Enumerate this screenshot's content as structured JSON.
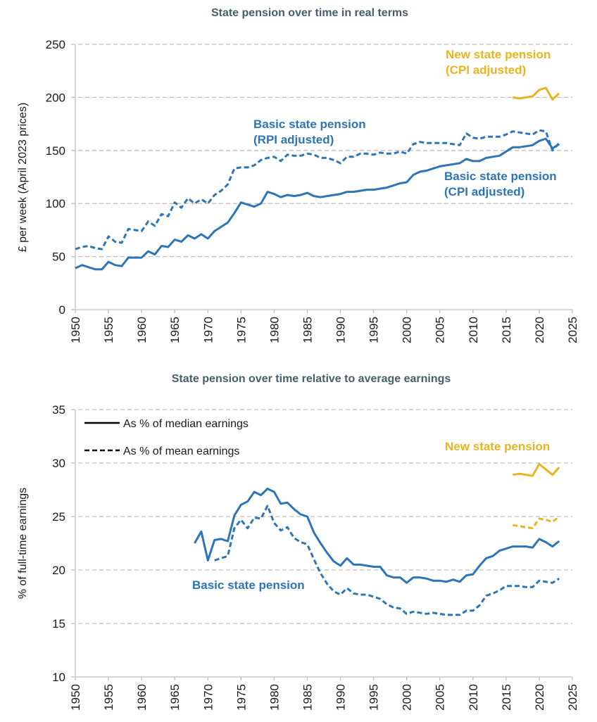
{
  "colors": {
    "basic": "#2e75b6",
    "new": "#e8b520",
    "grid": "#bfbfbf",
    "axis": "#bfbfbf",
    "title": "#44606a"
  },
  "chart_data": [
    {
      "type": "line",
      "title": "State pension over time in real terms",
      "xlabel": "",
      "ylabel": "£ per week (April 2023 prices)",
      "xlim": [
        1950,
        2025
      ],
      "ylim": [
        0,
        250
      ],
      "xticks": [
        "1950",
        "1955",
        "1960",
        "1965",
        "1970",
        "1975",
        "1980",
        "1985",
        "1990",
        "1995",
        "2000",
        "2005",
        "2010",
        "2015",
        "2020",
        "2025"
      ],
      "yticks": [
        "0",
        "50",
        "100",
        "150",
        "200",
        "250"
      ],
      "grid": true,
      "series": [
        {
          "name": "Basic state pension (RPI adjusted)",
          "style": "dashed",
          "color_key": "basic",
          "x": [
            1950,
            1951,
            1952,
            1953,
            1954,
            1955,
            1956,
            1957,
            1958,
            1959,
            1960,
            1961,
            1962,
            1963,
            1964,
            1965,
            1966,
            1967,
            1968,
            1969,
            1970,
            1971,
            1972,
            1973,
            1974,
            1975,
            1976,
            1977,
            1978,
            1979,
            1980,
            1981,
            1982,
            1983,
            1984,
            1985,
            1986,
            1987,
            1988,
            1989,
            1990,
            1991,
            1992,
            1993,
            1994,
            1995,
            1996,
            1997,
            1998,
            1999,
            2000,
            2001,
            2002,
            2003,
            2004,
            2005,
            2006,
            2007,
            2008,
            2009,
            2010,
            2011,
            2012,
            2013,
            2014,
            2015,
            2016,
            2017,
            2018,
            2019,
            2020,
            2021,
            2022,
            2023
          ],
          "values": [
            57,
            59,
            60,
            58,
            57,
            69,
            64,
            63,
            76,
            75,
            74,
            83,
            79,
            90,
            88,
            101,
            96,
            105,
            100,
            104,
            100,
            108,
            112,
            118,
            133,
            134,
            134,
            136,
            141,
            143,
            144,
            140,
            146,
            145,
            145,
            147,
            146,
            143,
            143,
            141,
            138,
            144,
            144,
            147,
            147,
            146,
            148,
            147,
            147,
            149,
            147,
            156,
            158,
            157,
            157,
            157,
            157,
            156,
            155,
            166,
            162,
            161,
            163,
            163,
            163,
            165,
            168,
            167,
            166,
            165,
            169,
            168,
            150,
            157
          ]
        },
        {
          "name": "Basic state pension (CPI adjusted)",
          "style": "solid",
          "color_key": "basic",
          "x": [
            1950,
            1951,
            1952,
            1953,
            1954,
            1955,
            1956,
            1957,
            1958,
            1959,
            1960,
            1961,
            1962,
            1963,
            1964,
            1965,
            1966,
            1967,
            1968,
            1969,
            1970,
            1971,
            1972,
            1973,
            1974,
            1975,
            1976,
            1977,
            1978,
            1979,
            1980,
            1981,
            1982,
            1983,
            1984,
            1985,
            1986,
            1987,
            1988,
            1989,
            1990,
            1991,
            1992,
            1993,
            1994,
            1995,
            1996,
            1997,
            1998,
            1999,
            2000,
            2001,
            2002,
            2003,
            2004,
            2005,
            2006,
            2007,
            2008,
            2009,
            2010,
            2011,
            2012,
            2013,
            2014,
            2015,
            2016,
            2017,
            2018,
            2019,
            2020,
            2021,
            2022,
            2023
          ],
          "values": [
            39,
            42,
            40,
            38,
            38,
            45,
            42,
            41,
            49,
            49,
            49,
            55,
            52,
            60,
            59,
            66,
            64,
            70,
            67,
            71,
            67,
            74,
            78,
            82,
            91,
            101,
            99,
            97,
            100,
            111,
            109,
            106,
            108,
            107,
            108,
            110,
            107,
            106,
            107,
            108,
            109,
            111,
            111,
            112,
            113,
            113,
            114,
            115,
            117,
            119,
            120,
            127,
            130,
            131,
            133,
            135,
            136,
            137,
            138,
            142,
            140,
            140,
            143,
            144,
            145,
            149,
            153,
            153,
            154,
            155,
            159,
            161,
            152,
            156
          ]
        },
        {
          "name": "New state pension (CPI adjusted)",
          "style": "solid",
          "color_key": "new",
          "x": [
            2016,
            2017,
            2018,
            2019,
            2020,
            2021,
            2022,
            2023
          ],
          "values": [
            200,
            199,
            200,
            201,
            207,
            209,
            198,
            204
          ]
        }
      ],
      "annotations": [
        {
          "text_lines": [
            "Basic state pension",
            "(RPI adjusted)"
          ],
          "color_key": "basic"
        },
        {
          "text_lines": [
            "Basic state pension",
            "(CPI adjusted)"
          ],
          "color_key": "basic"
        },
        {
          "text_lines": [
            "New state pension",
            "(CPI adjusted)"
          ],
          "color_key": "new"
        }
      ]
    },
    {
      "type": "line",
      "title": "State pension over time relative to average earnings",
      "xlabel": "",
      "ylabel": "% of full-time earnings",
      "xlim": [
        1950,
        2025
      ],
      "ylim": [
        10,
        35
      ],
      "xticks": [
        "1950",
        "1955",
        "1960",
        "1965",
        "1970",
        "1975",
        "1980",
        "1985",
        "1990",
        "1995",
        "2000",
        "2005",
        "2010",
        "2015",
        "2020",
        "2025"
      ],
      "yticks": [
        "10",
        "15",
        "20",
        "25",
        "30",
        "35"
      ],
      "grid": true,
      "legend_position": "top-left",
      "legend": [
        {
          "label": "As % of median earnings",
          "style": "solid"
        },
        {
          "label": "As % of mean earnings",
          "style": "dashed"
        }
      ],
      "series": [
        {
          "name": "Basic state pension – as % of median earnings",
          "style": "solid",
          "color_key": "basic",
          "x": [
            1968,
            1969,
            1970,
            1971,
            1972,
            1973,
            1974,
            1975,
            1976,
            1977,
            1978,
            1979,
            1980,
            1981,
            1982,
            1983,
            1984,
            1985,
            1986,
            1987,
            1988,
            1989,
            1990,
            1991,
            1992,
            1993,
            1994,
            1995,
            1996,
            1997,
            1998,
            1999,
            2000,
            2001,
            2002,
            2003,
            2004,
            2005,
            2006,
            2007,
            2008,
            2009,
            2010,
            2011,
            2012,
            2013,
            2014,
            2015,
            2016,
            2017,
            2018,
            2019,
            2020,
            2021,
            2022,
            2023
          ],
          "values": [
            22.5,
            23.6,
            20.9,
            22.8,
            22.9,
            22.7,
            25.1,
            26.1,
            26.4,
            27.3,
            27.0,
            27.6,
            27.3,
            26.2,
            26.3,
            25.7,
            25.2,
            25.0,
            23.5,
            22.5,
            21.6,
            20.8,
            20.4,
            21.1,
            20.5,
            20.5,
            20.4,
            20.3,
            20.3,
            19.5,
            19.3,
            19.3,
            18.8,
            19.3,
            19.3,
            19.2,
            19.0,
            19.0,
            18.9,
            19.1,
            18.9,
            19.5,
            19.6,
            20.4,
            21.1,
            21.3,
            21.8,
            22.0,
            22.2,
            22.2,
            22.2,
            22.1,
            22.9,
            22.6,
            22.2,
            22.7
          ]
        },
        {
          "name": "Basic state pension – as % of mean earnings",
          "style": "dashed",
          "color_key": "basic",
          "x": [
            1971,
            1972,
            1973,
            1974,
            1975,
            1976,
            1977,
            1978,
            1979,
            1980,
            1981,
            1982,
            1983,
            1984,
            1985,
            1986,
            1987,
            1988,
            1989,
            1990,
            1991,
            1992,
            1993,
            1994,
            1995,
            1996,
            1997,
            1998,
            1999,
            2000,
            2001,
            2002,
            2003,
            2004,
            2005,
            2006,
            2007,
            2008,
            2009,
            2010,
            2011,
            2012,
            2013,
            2014,
            2015,
            2016,
            2017,
            2018,
            2019,
            2020,
            2021,
            2022,
            2023
          ],
          "values": [
            20.9,
            21.1,
            21.3,
            23.9,
            24.7,
            23.9,
            24.9,
            24.8,
            26.0,
            24.4,
            23.7,
            24.0,
            23.0,
            22.6,
            22.4,
            21.0,
            19.7,
            18.7,
            18.0,
            17.7,
            18.3,
            17.8,
            17.7,
            17.7,
            17.5,
            17.3,
            16.8,
            16.5,
            16.4,
            15.9,
            16.1,
            16.0,
            15.9,
            16.0,
            15.9,
            15.8,
            15.8,
            15.8,
            16.2,
            16.2,
            16.7,
            17.6,
            17.8,
            18.1,
            18.5,
            18.5,
            18.5,
            18.4,
            18.4,
            19.0,
            18.9,
            18.8,
            19.2
          ]
        },
        {
          "name": "New state pension – as % of median earnings",
          "style": "solid",
          "color_key": "new",
          "x": [
            2016,
            2017,
            2018,
            2019,
            2020,
            2021,
            2022,
            2023
          ],
          "values": [
            28.9,
            29.0,
            28.9,
            28.8,
            29.9,
            29.4,
            28.9,
            29.6
          ]
        },
        {
          "name": "New state pension – as % of mean earnings",
          "style": "dashed",
          "color_key": "new",
          "x": [
            2016,
            2017,
            2018,
            2019,
            2020,
            2021,
            2022,
            2023
          ],
          "values": [
            24.2,
            24.1,
            24.0,
            23.9,
            24.8,
            24.7,
            24.5,
            25.0
          ]
        }
      ],
      "annotations": [
        {
          "text_lines": [
            "Basic state pension"
          ],
          "color_key": "basic"
        },
        {
          "text_lines": [
            "New state pension"
          ],
          "color_key": "new"
        }
      ]
    }
  ]
}
